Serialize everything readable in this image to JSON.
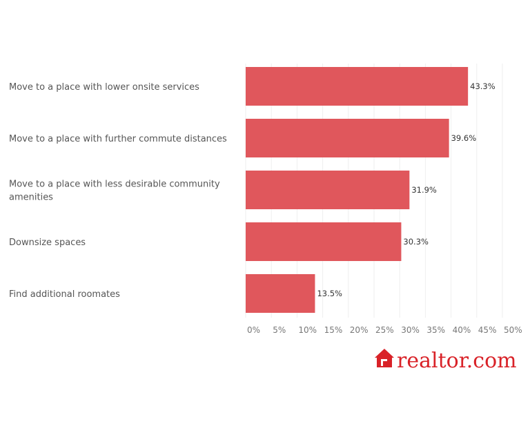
{
  "chart_data": {
    "type": "bar",
    "orientation": "horizontal",
    "categories": [
      [
        "Move to a place with lower onsite services"
      ],
      [
        "Move to a place with further commute distances"
      ],
      [
        "Move to a place with less desirable community",
        "amenities"
      ],
      [
        "Downsize spaces"
      ],
      [
        "Find additional roomates"
      ]
    ],
    "values": [
      43.3,
      39.6,
      31.9,
      30.3,
      13.5
    ],
    "value_labels": [
      "43.3%",
      "39.6%",
      "31.9%",
      "30.3%",
      "13.5%"
    ],
    "x_ticks": [
      "0%",
      "5%",
      "10%",
      "15%",
      "20%",
      "25%",
      "30%",
      "35%",
      "40%",
      "45%",
      "50%"
    ],
    "xlim": [
      0,
      50
    ],
    "grid": "vertical",
    "bar_color": "#e0575c"
  },
  "logo": {
    "text": "realtor.com",
    "color": "#d92228",
    "icon": "house-icon"
  }
}
